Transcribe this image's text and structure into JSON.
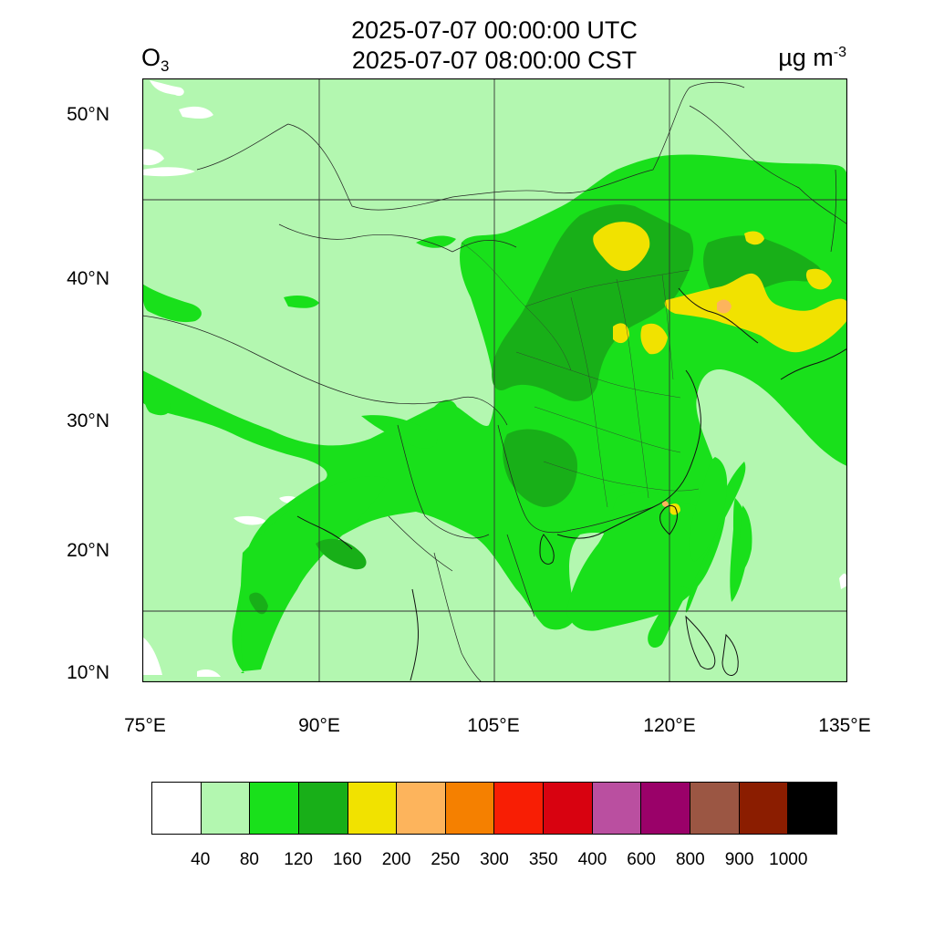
{
  "title": {
    "utc": "2025-07-07 00:00:00 UTC",
    "local": "2025-07-07 08:00:00 CST"
  },
  "species": {
    "name": "O",
    "subscript": "3"
  },
  "units": {
    "base": "µg m",
    "exponent": "-3"
  },
  "map": {
    "type": "filled-contour map",
    "lon_range": [
      75,
      135
    ],
    "lat_range": [
      9,
      52
    ],
    "lon_ticks": [
      "75°E",
      "90°E",
      "105°E",
      "120°E",
      "135°E"
    ],
    "lat_ticks": [
      "10°N",
      "20°N",
      "30°N",
      "40°N",
      "50°N"
    ],
    "background_level_color": "#b3f7b0"
  },
  "colorbar": {
    "colors": [
      "#ffffff",
      "#b3f7b0",
      "#19e01b",
      "#18af18",
      "#f1e200",
      "#fdb45c",
      "#f58000",
      "#f81e04",
      "#d80210",
      "#ba4fa0",
      "#9a0169",
      "#9b5643",
      "#8b1d00",
      "#000000"
    ],
    "labels": [
      "40",
      "80",
      "120",
      "160",
      "200",
      "250",
      "300",
      "350",
      "400",
      "600",
      "800",
      "900",
      "1000"
    ]
  }
}
